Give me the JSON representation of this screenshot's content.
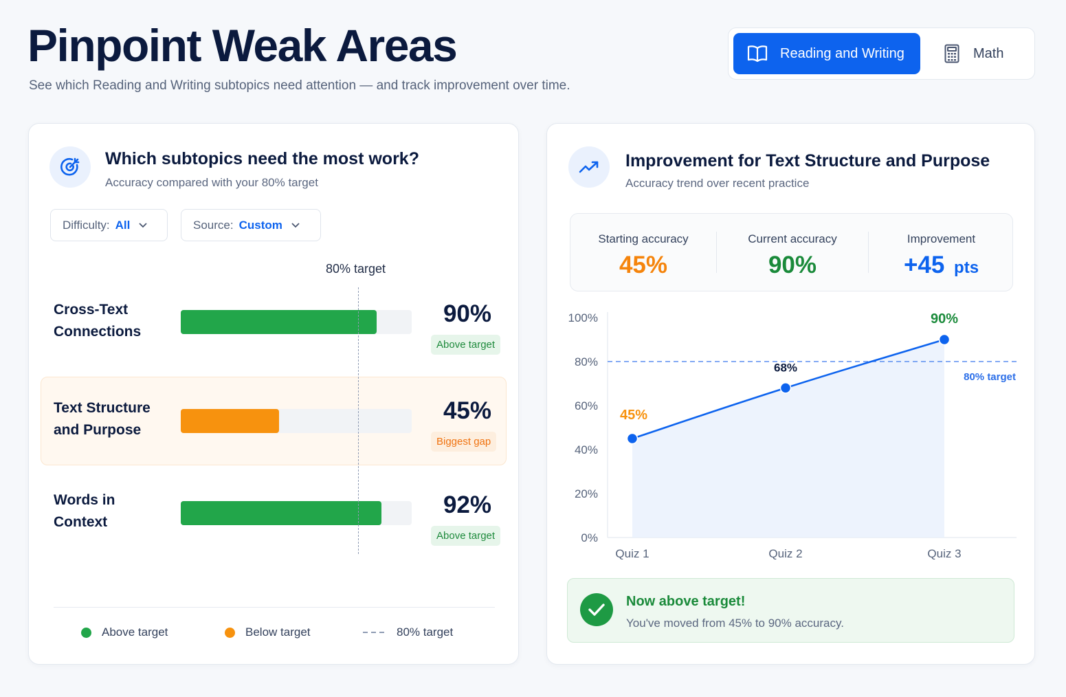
{
  "header": {
    "title": "Pinpoint Weak Areas",
    "subtitle": "See which Reading and Writing subtopics need attention — and track improvement over time."
  },
  "subject_switch": {
    "active": {
      "label": "Reading and Writing",
      "icon": "book-icon"
    },
    "inactive": {
      "label": "Math",
      "icon": "calculator-icon"
    }
  },
  "subtopics_card": {
    "icon": "target-icon",
    "title": "Which subtopics need the most work?",
    "subtitle": "Accuracy compared with your 80% target",
    "filters": {
      "difficulty": {
        "label": "Difficulty:",
        "value": "All"
      },
      "source": {
        "label": "Source:",
        "value": "Custom"
      }
    },
    "target_label": "80% target",
    "target": 80,
    "rows": [
      {
        "label_line1": "Cross-Text",
        "label_line2": "Connections",
        "value": 90,
        "pct": "90%",
        "badge": "Above target",
        "status": "above"
      },
      {
        "label_line1": "Text Structure",
        "label_line2": "and Purpose",
        "value": 45,
        "pct": "45%",
        "badge": "Biggest gap",
        "status": "below"
      },
      {
        "label_line1": "Words in",
        "label_line2": "Context",
        "value": 92,
        "pct": "92%",
        "badge": "Above target",
        "status": "above"
      }
    ],
    "legend": {
      "above": "Above target",
      "below": "Below target",
      "target": "80% target"
    }
  },
  "improvement_card": {
    "icon": "trend-up-icon",
    "title": "Improvement for Text Structure and Purpose",
    "subtitle": "Accuracy trend over recent practice",
    "stats": [
      {
        "label": "Starting accuracy",
        "value": "45%",
        "color": "#f5840c"
      },
      {
        "label": "Current accuracy",
        "value": "90%",
        "color": "#1a8a3a"
      },
      {
        "label": "Improvement",
        "value": "+45",
        "unit": "pts",
        "color": "#0d63ee"
      }
    ],
    "success": {
      "title": "Now above target!",
      "text": "You've moved from 45% to 90% accuracy."
    }
  },
  "colors": {
    "primary": "#0d63ee",
    "above": "#22a64a",
    "below": "#f7920e",
    "text_dark": "#0b1a3e"
  },
  "chart_data": {
    "type": "line",
    "categories": [
      "Quiz 1",
      "Quiz 2",
      "Quiz 3"
    ],
    "series": [
      {
        "values": [
          45,
          68,
          90
        ]
      }
    ],
    "point_labels": [
      "45%",
      "68%",
      "90%"
    ],
    "ylim": [
      0,
      100
    ],
    "yticks": [
      "0%",
      "20%",
      "40%",
      "60%",
      "80%",
      "100%"
    ],
    "ytick_values": [
      0,
      20,
      40,
      60,
      80,
      100
    ],
    "target": 80,
    "target_label": "80% target",
    "grid": false
  }
}
